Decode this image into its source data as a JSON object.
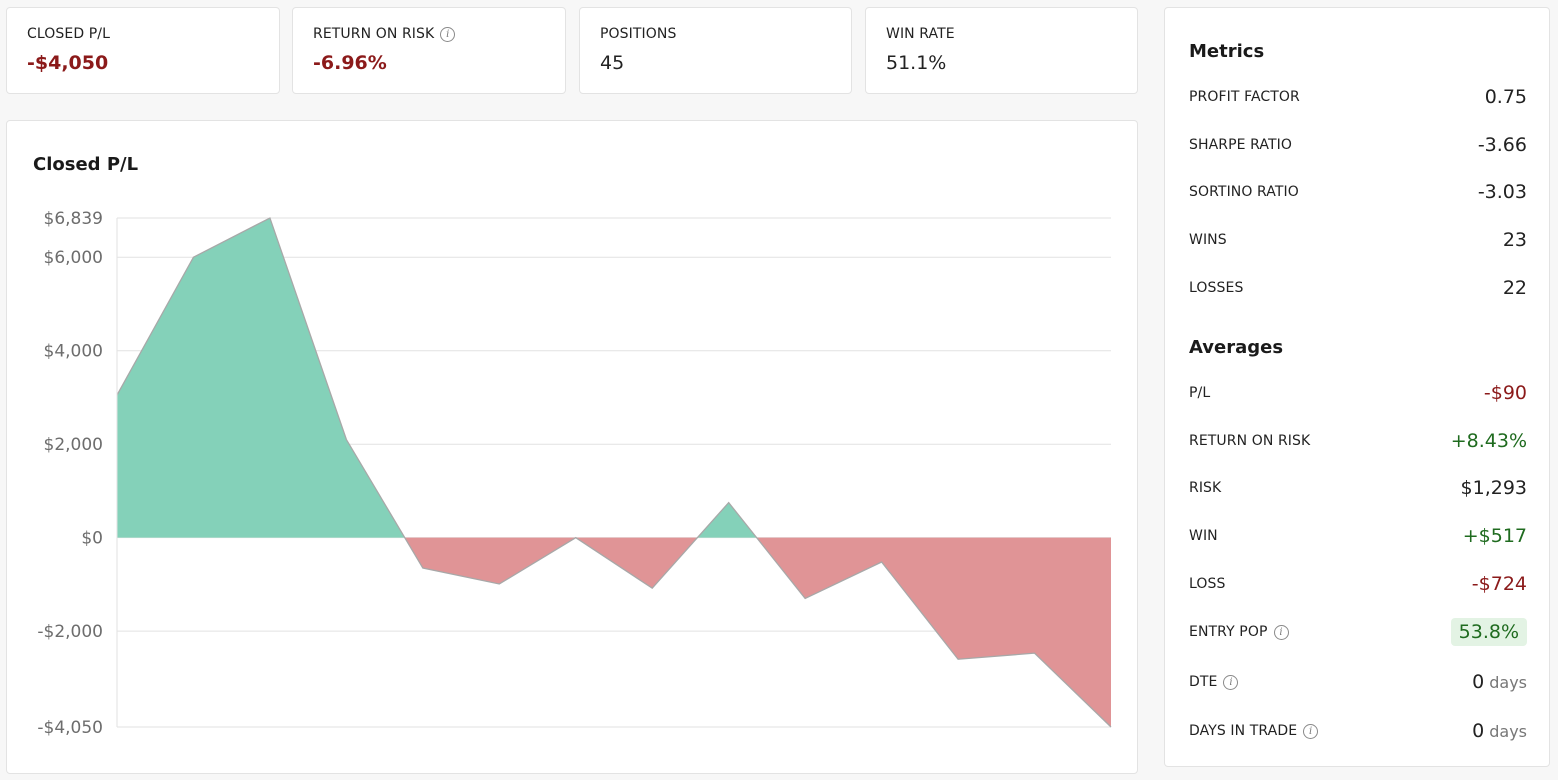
{
  "stats": [
    {
      "label": "CLOSED P/L",
      "value": "-$4,050",
      "negative": true,
      "info": false
    },
    {
      "label": "RETURN ON RISK",
      "value": "-6.96%",
      "negative": true,
      "info": true
    },
    {
      "label": "POSITIONS",
      "value": "45",
      "negative": false,
      "info": false
    },
    {
      "label": "WIN RATE",
      "value": "51.1%",
      "negative": false,
      "info": false
    }
  ],
  "chart": {
    "title": "Closed P/L"
  },
  "chart_data": {
    "type": "area",
    "title": "Closed P/L",
    "xlabel": "",
    "ylabel": "",
    "x": [
      0,
      1,
      2,
      3,
      4,
      5,
      6,
      7,
      8,
      9,
      10,
      11,
      12,
      13
    ],
    "values": [
      3050,
      6000,
      6839,
      2100,
      -650,
      -990,
      0,
      -1080,
      750,
      -1300,
      -520,
      -2600,
      -2470,
      -4050
    ],
    "ylim": [
      -4050,
      6839
    ],
    "yticks": [
      6839,
      6000,
      4000,
      2000,
      0,
      -2000,
      -4050
    ],
    "ytick_labels": [
      "$6,839",
      "$6,000",
      "$4,000",
      "$2,000",
      "$0",
      "-$2,000",
      "-$4,050"
    ],
    "positive_color": "#84d1b9",
    "negative_color": "#e09496",
    "grid": true
  },
  "metrics": {
    "heading": "Metrics",
    "items": [
      {
        "label": "PROFIT FACTOR",
        "value": "0.75"
      },
      {
        "label": "SHARPE RATIO",
        "value": "-3.66"
      },
      {
        "label": "SORTINO RATIO",
        "value": "-3.03"
      },
      {
        "label": "WINS",
        "value": "23"
      },
      {
        "label": "LOSSES",
        "value": "22"
      }
    ]
  },
  "averages": {
    "heading": "Averages",
    "items": [
      {
        "label": "P/L",
        "value": "-$90",
        "tone": "neg"
      },
      {
        "label": "RETURN ON RISK",
        "value": "+8.43%",
        "tone": "pos"
      },
      {
        "label": "RISK",
        "value": "$1,293",
        "tone": ""
      },
      {
        "label": "WIN",
        "value": "+$517",
        "tone": "pos"
      },
      {
        "label": "LOSS",
        "value": "-$724",
        "tone": "neg"
      },
      {
        "label": "ENTRY POP",
        "value": "53.8%",
        "tone": "badge",
        "info": true
      },
      {
        "label": "DTE",
        "value": "0",
        "unit": "days",
        "tone": "",
        "info": true
      },
      {
        "label": "DAYS IN TRADE",
        "value": "0",
        "unit": "days",
        "tone": "",
        "info": true
      }
    ]
  },
  "icons": {
    "info": "info-icon",
    "info_glyph": "i"
  }
}
